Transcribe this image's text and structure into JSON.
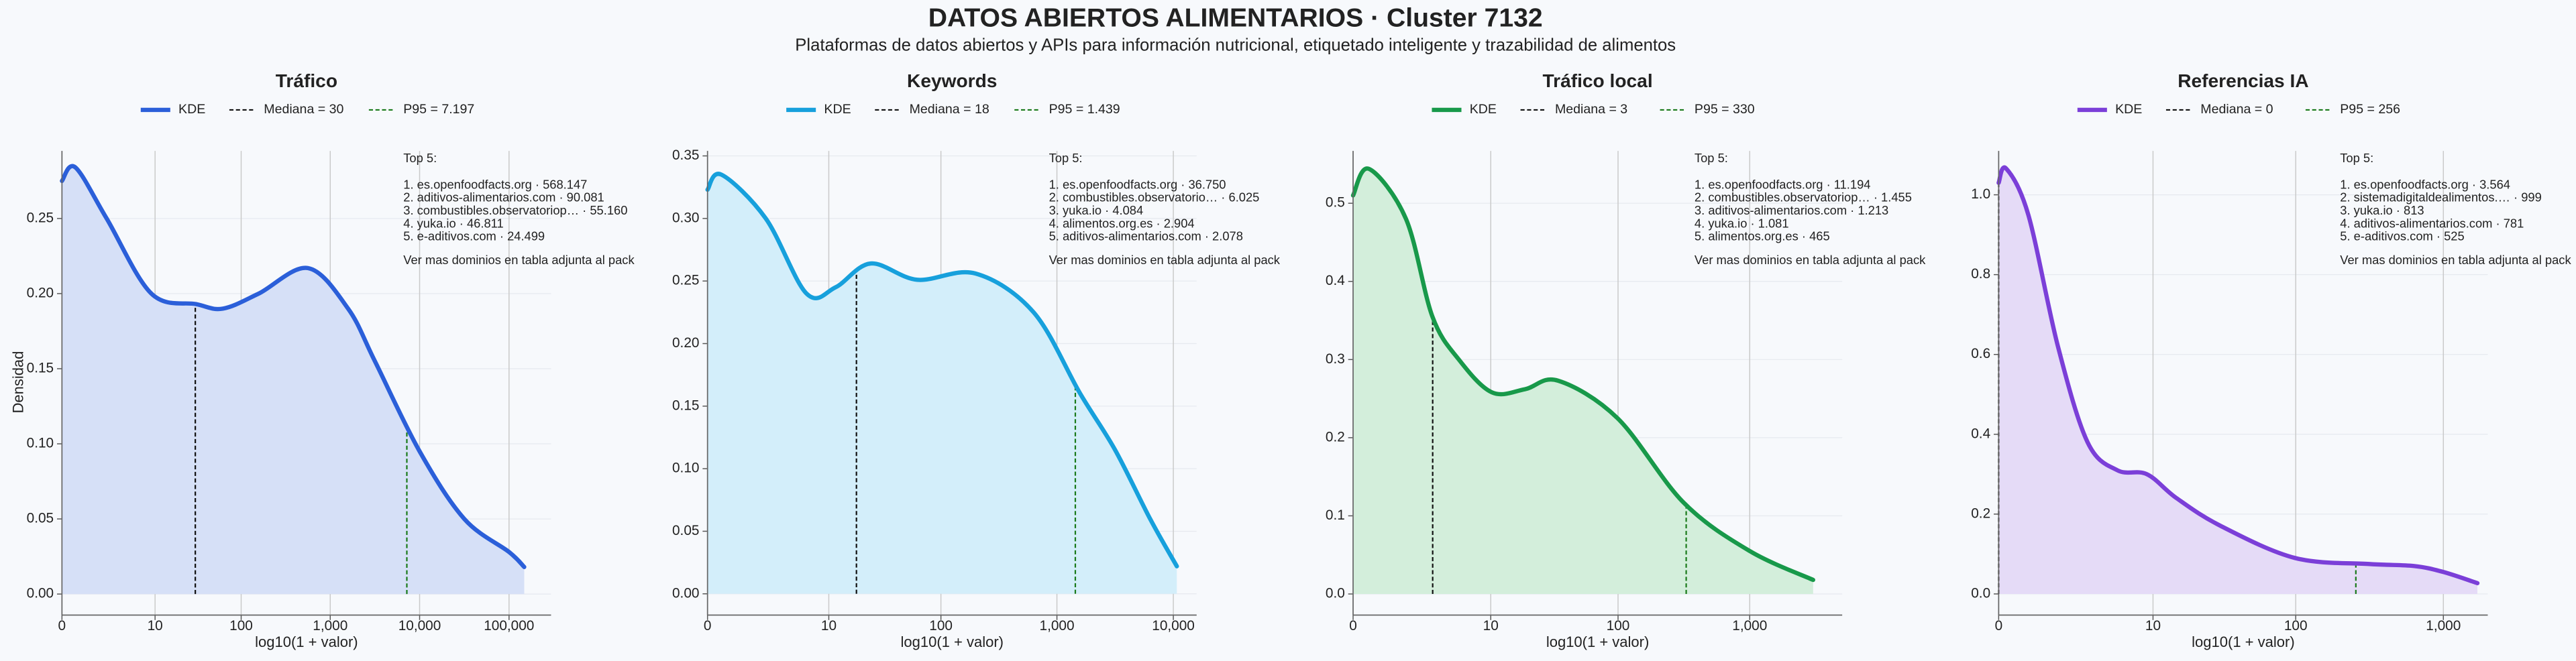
{
  "title": "DATOS ABIERTOS ALIMENTARIOS · Cluster 7132",
  "subtitle": "Plataformas de datos abiertos y APIs para información nutricional, etiquetado inteligente y trazabilidad de alimentos",
  "chart_data": [
    {
      "type": "area",
      "title": "Tráfico",
      "xlabel": "log10(1 + valor)",
      "ylabel": "Densidad",
      "legend_label": "KDE",
      "color": "#2b5fd9",
      "fill": "#d6e0f7",
      "x": [
        0,
        0.15,
        0.5,
        1.0,
        1.5,
        1.8,
        2.2,
        2.75,
        3.2,
        3.5,
        4.0,
        4.5,
        5.0,
        5.17
      ],
      "values": [
        0.275,
        0.284,
        0.25,
        0.2,
        0.193,
        0.19,
        0.2,
        0.217,
        0.19,
        0.155,
        0.095,
        0.05,
        0.028,
        0.018
      ],
      "median": {
        "value": 30,
        "label": "Mediana = 30"
      },
      "p95": {
        "value": 7197,
        "label": "P95 = 7.197"
      },
      "xlim": [
        0,
        5.47
      ],
      "ylim": [
        -0.014,
        0.295
      ],
      "xticks": [
        0,
        {
          "value": 1.0414,
          "label": "10"
        },
        {
          "value": 2.0043,
          "label": "100"
        },
        {
          "value": 3.0004,
          "label": "1,000"
        },
        {
          "value": 4.0,
          "label": "10,000"
        },
        {
          "value": 5.0,
          "label": "100,000"
        }
      ],
      "yticks": [
        {
          "value": 0,
          "label": "0.00"
        },
        {
          "value": 0.05,
          "label": "0.05"
        },
        {
          "value": 0.1,
          "label": "0.10"
        },
        {
          "value": 0.15,
          "label": "0.15"
        },
        {
          "value": 0.2,
          "label": "0.20"
        },
        {
          "value": 0.25,
          "label": "0.25"
        }
      ],
      "annotation": {
        "title": "Top 5:",
        "lines": [
          "1. es.openfoodfacts.org · 568.147",
          "2. aditivos-alimentarios.com · 90.081",
          "3. combustibles.observatoriop… · 55.160",
          "4. yuka.io · 46.811",
          "5. e-aditivos.com · 24.499"
        ],
        "footer": "Ver mas dominios en tabla adjunta al pack"
      }
    },
    {
      "type": "area",
      "title": "Keywords",
      "xlabel": "log10(1 + valor)",
      "legend_label": "KDE",
      "color": "#17a0dc",
      "fill": "#d3eefa",
      "x": [
        0,
        0.12,
        0.5,
        0.85,
        1.1,
        1.4,
        1.8,
        2.3,
        2.8,
        3.2,
        3.5,
        3.8,
        4.03
      ],
      "values": [
        0.323,
        0.335,
        0.3,
        0.24,
        0.245,
        0.264,
        0.251,
        0.256,
        0.225,
        0.16,
        0.115,
        0.06,
        0.022
      ],
      "median": {
        "value": 18,
        "label": "Mediana = 18"
      },
      "p95": {
        "value": 1439,
        "label": "P95 = 1.439"
      },
      "xlim": [
        0,
        4.2
      ],
      "ylim": [
        -0.017,
        0.354
      ],
      "xticks": [
        0,
        {
          "value": 1.0414,
          "label": "10"
        },
        {
          "value": 2.0043,
          "label": "100"
        },
        {
          "value": 3.0004,
          "label": "1,000"
        },
        {
          "value": 4.0,
          "label": "10,000"
        }
      ],
      "yticks": [
        {
          "value": 0,
          "label": "0.00"
        },
        {
          "value": 0.05,
          "label": "0.05"
        },
        {
          "value": 0.1,
          "label": "0.10"
        },
        {
          "value": 0.15,
          "label": "0.15"
        },
        {
          "value": 0.2,
          "label": "0.20"
        },
        {
          "value": 0.25,
          "label": "0.25"
        },
        {
          "value": 0.3,
          "label": "0.30"
        },
        {
          "value": 0.35,
          "label": "0.35"
        }
      ],
      "annotation": {
        "title": "Top 5:",
        "lines": [
          "1. es.openfoodfacts.org · 36.750",
          "2. combustibles.observatorio… · 6.025",
          "3. yuka.io · 4.084",
          "4. alimentos.org.es · 2.904",
          "5. aditivos-alimentarios.com · 2.078"
        ],
        "footer": "Ver mas dominios en tabla adjunta al pack"
      }
    },
    {
      "type": "area",
      "title": "Tráfico local",
      "xlabel": "log10(1 + valor)",
      "legend_label": "KDE",
      "color": "#18994a",
      "fill": "#d3eedb",
      "x": [
        0,
        0.12,
        0.4,
        0.6,
        0.8,
        1.05,
        1.3,
        1.55,
        2.0,
        2.5,
        3.0,
        3.48
      ],
      "values": [
        0.51,
        0.544,
        0.48,
        0.355,
        0.3,
        0.258,
        0.262,
        0.273,
        0.225,
        0.117,
        0.055,
        0.018
      ],
      "median": {
        "value": 3,
        "label": "Mediana = 3"
      },
      "p95": {
        "value": 330,
        "label": "P95 = 330"
      },
      "xlim": [
        0,
        3.7
      ],
      "ylim": [
        -0.027,
        0.567
      ],
      "xticks": [
        0,
        {
          "value": 1.0414,
          "label": "10"
        },
        {
          "value": 2.0043,
          "label": "100"
        },
        {
          "value": 3.0004,
          "label": "1,000"
        }
      ],
      "yticks": [
        {
          "value": 0,
          "label": "0.0"
        },
        {
          "value": 0.1,
          "label": "0.1"
        },
        {
          "value": 0.2,
          "label": "0.2"
        },
        {
          "value": 0.3,
          "label": "0.3"
        },
        {
          "value": 0.4,
          "label": "0.4"
        },
        {
          "value": 0.5,
          "label": "0.5"
        }
      ],
      "annotation": {
        "title": "Top 5:",
        "lines": [
          "1. es.openfoodfacts.org · 11.194",
          "2. combustibles.observatoriop… · 1.455",
          "3. aditivos-alimentarios.com · 1.213",
          "4. yuka.io · 1.081",
          "5. alimentos.org.es · 465"
        ],
        "footer": "Ver mas dominios en tabla adjunta al pack"
      }
    },
    {
      "type": "area",
      "title": "Referencias IA",
      "xlabel": "log10(1 + valor)",
      "legend_label": "KDE",
      "color": "#7b3fd8",
      "fill": "#e5dbf7",
      "x": [
        0,
        0.05,
        0.2,
        0.4,
        0.6,
        0.8,
        1.0,
        1.2,
        1.5,
        2.0,
        2.5,
        2.8,
        3.0,
        3.23
      ],
      "values": [
        1.03,
        1.066,
        0.95,
        0.62,
        0.38,
        0.31,
        0.3,
        0.24,
        0.17,
        0.09,
        0.075,
        0.07,
        0.055,
        0.027
      ],
      "median": {
        "value": 0,
        "label": "Mediana = 0"
      },
      "p95": {
        "value": 256,
        "label": "P95 = 256"
      },
      "xlim": [
        0,
        3.3
      ],
      "ylim": [
        -0.053,
        1.11
      ],
      "xticks": [
        0,
        {
          "value": 1.0414,
          "label": "10"
        },
        {
          "value": 2.0043,
          "label": "100"
        },
        {
          "value": 3.0004,
          "label": "1,000"
        }
      ],
      "yticks": [
        {
          "value": 0,
          "label": "0.0"
        },
        {
          "value": 0.2,
          "label": "0.2"
        },
        {
          "value": 0.4,
          "label": "0.4"
        },
        {
          "value": 0.6,
          "label": "0.6"
        },
        {
          "value": 0.8,
          "label": "0.8"
        },
        {
          "value": 1.0,
          "label": "1.0"
        }
      ],
      "annotation": {
        "title": "Top 5:",
        "lines": [
          "1. es.openfoodfacts.org · 3.564",
          "2. sistemadigitaldealimentos.… · 999",
          "3. yuka.io · 813",
          "4. aditivos-alimentarios.com · 781",
          "5. e-aditivos.com · 525"
        ],
        "footer": "Ver mas dominios en tabla adjunta al pack"
      }
    }
  ]
}
